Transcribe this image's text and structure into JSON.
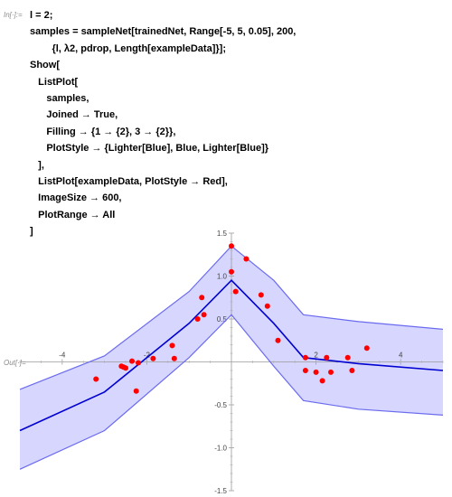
{
  "cells": {
    "in_label": "In[·]:=",
    "out_label": "Out[·]=",
    "code_lines": [
      "l = 2;",
      "samples = sampleNet[trainedNet, Range[-5, 5, 0.05], 200,",
      "        {l, λ2, pdrop, Length[exampleData]}];",
      "Show[",
      "   ListPlot[",
      "      samples,",
      "      Joined → True,",
      "      Filling → {1 → {2}, 3 → {2}},",
      "      PlotStyle → {Lighter[Blue], Blue, Lighter[Blue]}",
      "   ],",
      "   ListPlot[exampleData, PlotStyle → Red],",
      "   ImageSize → 600,",
      "   PlotRange → All",
      "]"
    ]
  },
  "chart_data": {
    "type": "line",
    "xlim": [
      -5,
      5
    ],
    "ylim": [
      -1.5,
      1.5
    ],
    "x_ticks": [
      -4,
      -2,
      2,
      4
    ],
    "x_tick_labels": [
      "-4",
      "-2",
      "2",
      "4"
    ],
    "y_ticks": [
      -1.5,
      -1.0,
      -0.5,
      0.5,
      1.0,
      1.5
    ],
    "y_tick_labels": [
      "-1.5",
      "-1.0",
      "-0.5",
      "0.5",
      "1.0",
      "1.5"
    ],
    "band_color": "#d6d6ff",
    "band_edge_color": "#6b6bf0",
    "mean_color": "#0000d0",
    "points_color": "#ff0000",
    "upper": {
      "x": [
        -5,
        -3,
        -1,
        0,
        1,
        1.7,
        3,
        5
      ],
      "y": [
        -0.32,
        0.07,
        0.82,
        1.35,
        0.95,
        0.55,
        0.47,
        0.38
      ]
    },
    "mean": {
      "x": [
        -5,
        -3,
        -1,
        0,
        1,
        1.7,
        3,
        5
      ],
      "y": [
        -0.8,
        -0.35,
        0.45,
        0.95,
        0.45,
        0.05,
        -0.02,
        -0.1
      ]
    },
    "lower": {
      "x": [
        -5,
        -3,
        -1,
        0,
        1,
        1.7,
        3,
        5
      ],
      "y": [
        -1.25,
        -0.8,
        0.05,
        0.55,
        -0.05,
        -0.45,
        -0.55,
        -0.62
      ]
    },
    "points": {
      "x": [
        -3.2,
        -2.6,
        -2.55,
        -2.5,
        -2.35,
        -2.25,
        -2.2,
        -1.85,
        -1.4,
        -1.35,
        -0.8,
        -0.7,
        -0.65,
        0.0,
        0.0,
        0.1,
        0.35,
        0.7,
        0.85,
        1.1,
        1.75,
        1.75,
        2.0,
        2.15,
        2.25,
        2.35,
        2.75,
        2.85,
        3.2
      ],
      "y": [
        -0.2,
        -0.05,
        -0.06,
        -0.07,
        0.01,
        -0.34,
        -0.01,
        0.04,
        0.19,
        0.04,
        0.5,
        0.75,
        0.55,
        1.35,
        1.05,
        0.82,
        1.2,
        0.78,
        0.65,
        0.25,
        0.05,
        -0.1,
        -0.12,
        -0.22,
        0.05,
        -0.12,
        0.05,
        -0.1,
        0.16
      ]
    }
  }
}
